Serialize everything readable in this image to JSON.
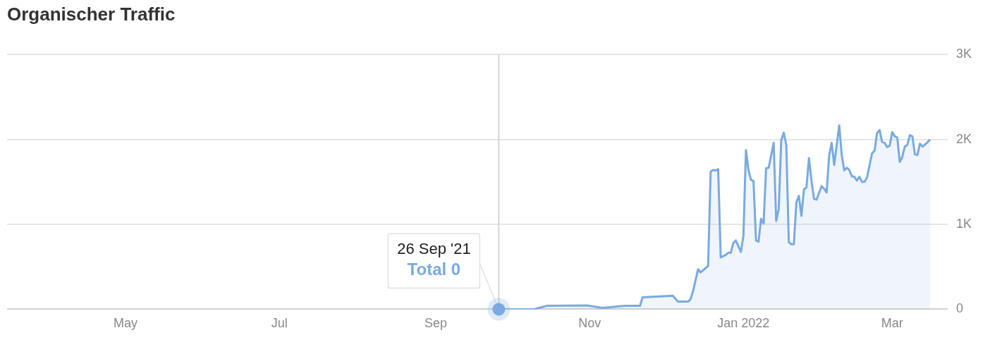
{
  "chart_data": {
    "type": "area",
    "title": "Organischer Traffic",
    "x": [
      "2021-09-26",
      "2021-10-10",
      "2021-10-15",
      "2021-10-31",
      "2021-11-06",
      "2021-11-15",
      "2021-11-21",
      "2021-11-22",
      "2021-12-04",
      "2021-12-06",
      "2021-12-10",
      "2021-12-11",
      "2021-12-12",
      "2021-12-14",
      "2021-12-15",
      "2021-12-18",
      "2021-12-19",
      "2021-12-20",
      "2021-12-21",
      "2021-12-22",
      "2021-12-23",
      "2021-12-25",
      "2021-12-26",
      "2021-12-27",
      "2021-12-28",
      "2021-12-29",
      "2021-12-31",
      "2022-01-01",
      "2022-01-02",
      "2022-01-03",
      "2022-01-04",
      "2022-01-05",
      "2022-01-06",
      "2022-01-07",
      "2022-01-08",
      "2022-01-09",
      "2022-01-10",
      "2022-01-11",
      "2022-01-13",
      "2022-01-14",
      "2022-01-15",
      "2022-01-16",
      "2022-01-17",
      "2022-01-18",
      "2022-01-19",
      "2022-01-20",
      "2022-01-21",
      "2022-01-22",
      "2022-01-23",
      "2022-01-24",
      "2022-01-25",
      "2022-01-26",
      "2022-01-27",
      "2022-01-28",
      "2022-01-29",
      "2022-01-30",
      "2022-02-01",
      "2022-02-02",
      "2022-02-03",
      "2022-02-04",
      "2022-02-05",
      "2022-02-06",
      "2022-02-08",
      "2022-02-09",
      "2022-02-10",
      "2022-02-11",
      "2022-02-12",
      "2022-02-13",
      "2022-02-14",
      "2022-02-15",
      "2022-02-16",
      "2022-02-17",
      "2022-02-18",
      "2022-02-19",
      "2022-02-21",
      "2022-02-22",
      "2022-02-23",
      "2022-02-24",
      "2022-02-25",
      "2022-02-26",
      "2022-02-27",
      "2022-02-28",
      "2022-03-01",
      "2022-03-02",
      "2022-03-03",
      "2022-03-04",
      "2022-03-05",
      "2022-03-06",
      "2022-03-07",
      "2022-03-08",
      "2022-03-09",
      "2022-03-10",
      "2022-03-11",
      "2022-03-12",
      "2022-03-13",
      "2022-03-15",
      "2022-03-16"
    ],
    "series": [
      {
        "color": "#7aaae0",
        "values": [
          0,
          0,
          40,
          45,
          15,
          40,
          40,
          140,
          160,
          90,
          90,
          115,
          210,
          470,
          435,
          510,
          1620,
          1640,
          1635,
          1650,
          610,
          640,
          665,
          665,
          780,
          810,
          675,
          865,
          1875,
          1640,
          1525,
          1510,
          810,
          795,
          1065,
          1010,
          1660,
          1665,
          1960,
          1040,
          1180,
          1990,
          2080,
          1935,
          790,
          765,
          765,
          1260,
          1335,
          1100,
          1410,
          1435,
          1780,
          1515,
          1300,
          1290,
          1450,
          1420,
          1375,
          1810,
          1960,
          1700,
          2165,
          1810,
          1635,
          1665,
          1640,
          1565,
          1560,
          1515,
          1560,
          1500,
          1500,
          1550,
          1835,
          1865,
          2075,
          2110,
          1970,
          1960,
          1910,
          1925,
          2085,
          2035,
          2025,
          1735,
          1795,
          1915,
          1935,
          2050,
          2035,
          1825,
          1815,
          1950,
          1915,
          1965,
          2000
        ]
      }
    ],
    "xlim": [
      "2021-03-15",
      "2022-03-23"
    ],
    "xticks": [
      {
        "value": "2021-05-01",
        "label": "May"
      },
      {
        "value": "2021-07-01",
        "label": "Jul"
      },
      {
        "value": "2021-09-01",
        "label": "Sep"
      },
      {
        "value": "2021-11-01",
        "label": "Nov"
      },
      {
        "value": "2022-01-01",
        "label": "Jan 2022"
      },
      {
        "value": "2022-03-01",
        "label": "Mar"
      }
    ],
    "ylim": [
      0,
      3000
    ],
    "yticks": [
      {
        "value": 0,
        "label": "0"
      },
      {
        "value": 1000,
        "label": "1K"
      },
      {
        "value": 2000,
        "label": "2K"
      },
      {
        "value": 3000,
        "label": "3K"
      }
    ],
    "grid": "y",
    "legend": false,
    "marker": "none",
    "line_style": "solid",
    "ref_lines": [
      {
        "axis": "x",
        "value": "2021-09-26",
        "color": "#c8c8c8"
      }
    ],
    "annotations": [
      {
        "text": "26 Sep '21",
        "x": "2021-09-26",
        "y": 0
      },
      "Total 0"
    ]
  }
}
